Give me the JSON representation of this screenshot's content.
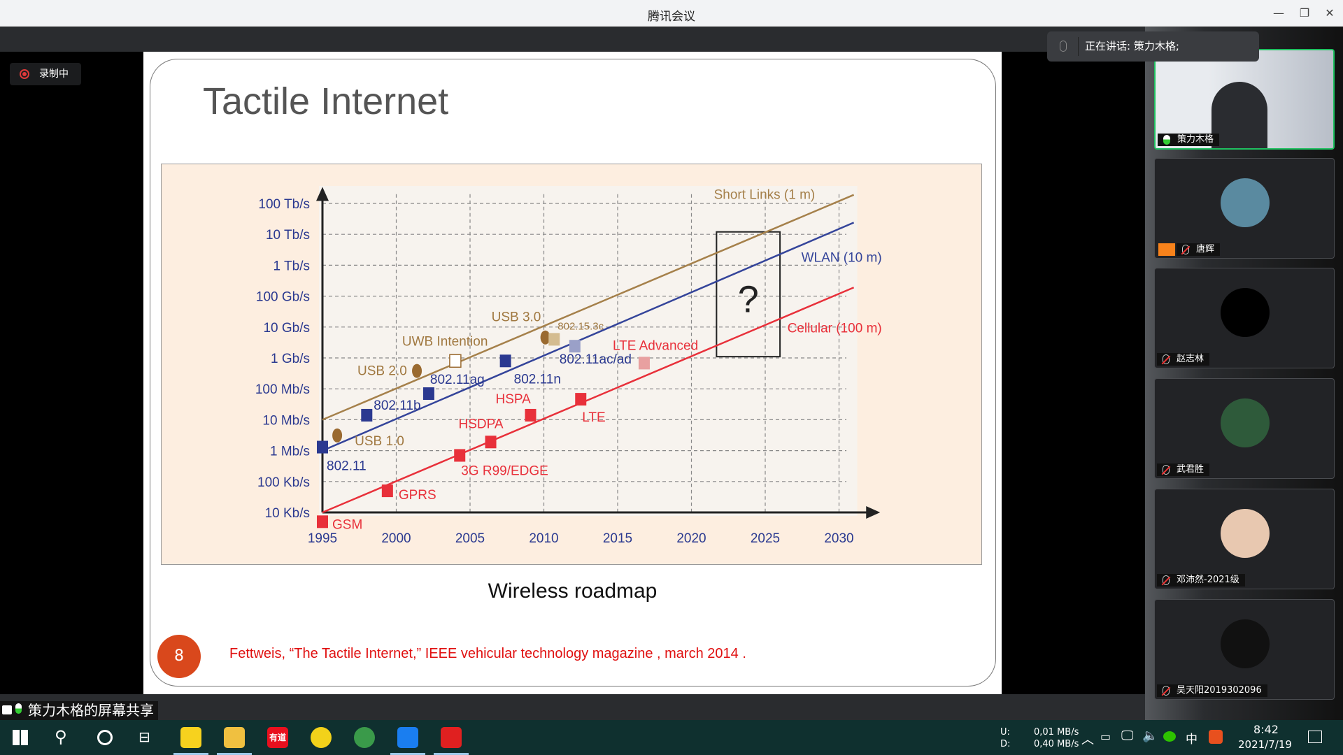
{
  "window": {
    "title": "腾讯会议",
    "controls": [
      "minimize",
      "restore",
      "close"
    ]
  },
  "recording": {
    "label": "录制中"
  },
  "speaking": {
    "label": "正在讲话: 策力木格;"
  },
  "share_label": "策力木格的屏幕共享",
  "slide": {
    "title": "Tactile Internet",
    "caption": "Wireless roadmap",
    "page_number": "8",
    "citation": "Fettweis, “The Tactile Internet,” IEEE vehicular technology magazine , march 2014 ."
  },
  "chart_data": {
    "type": "line",
    "title": "",
    "xlabel": "",
    "ylabel": "",
    "x_ticks": [
      "1995",
      "2000",
      "2005",
      "2010",
      "2015",
      "2020",
      "2025",
      "2030"
    ],
    "y_ticks": [
      "10 Kb/s",
      "100 Kb/s",
      "1 Mb/s",
      "10 Mb/s",
      "100 Mb/s",
      "1 Gb/s",
      "10 Gb/s",
      "100 Gb/s",
      "1 Tb/s",
      "10 Tb/s",
      "100 Tb/s"
    ],
    "y_scale": "log",
    "ylim_bps": [
      10000,
      100000000000000
    ],
    "xlim": [
      1995,
      2031
    ],
    "grid": true,
    "series": [
      {
        "name": "Short Links (1 m)",
        "color": "#a5804a",
        "x": [
          1995,
          2031
        ],
        "y": [
          10000000,
          190000000000000
        ]
      },
      {
        "name": "WLAN (10 m)",
        "color": "#34449a",
        "x": [
          1995,
          2031
        ],
        "y": [
          1000000,
          24000000000000
        ]
      },
      {
        "name": "Cellular (100 m)",
        "color": "#e8303a",
        "x": [
          1995,
          2031
        ],
        "y": [
          10000,
          190000000000
        ]
      }
    ],
    "points": [
      {
        "label": "802.11",
        "x": 1995,
        "y": 1300000,
        "color": "#2b3990",
        "shape": "square"
      },
      {
        "label": "GSM",
        "x": 1995,
        "y": 5000,
        "color": "#e8303a",
        "shape": "square"
      },
      {
        "label": "USB 1.0",
        "x": 1996,
        "y": 3100000,
        "color": "#9a6a30",
        "shape": "ellipse"
      },
      {
        "label": "802.11b",
        "x": 1998,
        "y": 14000000,
        "color": "#2b3990",
        "shape": "square"
      },
      {
        "label": "GPRS",
        "x": 1999.4,
        "y": 50000,
        "color": "#e8303a",
        "shape": "square"
      },
      {
        "label": "802.11ag",
        "x": 2002.2,
        "y": 70000000,
        "color": "#2b3990",
        "shape": "square"
      },
      {
        "label": "USB 2.0",
        "x": 2001.4,
        "y": 380000000,
        "color": "#9a6a30",
        "shape": "ellipse"
      },
      {
        "label": "UWB Intention",
        "x": 2004,
        "y": 800000000,
        "color": "#ffffff",
        "shape": "open-square"
      },
      {
        "label": "802.11n",
        "x": 2007.4,
        "y": 800000000,
        "color": "#2b3990",
        "shape": "square"
      },
      {
        "label": "USB 3.0",
        "x": 2010.1,
        "y": 4600000000,
        "color": "#9a6a30",
        "shape": "ellipse"
      },
      {
        "label": "802.15.3c",
        "x": 2010.7,
        "y": 4000000000,
        "color": "#d4bc90",
        "shape": "square"
      },
      {
        "label": "802.11ac/ad",
        "x": 2012.1,
        "y": 2400000000,
        "color": "#9aa0c8",
        "shape": "square"
      },
      {
        "label": "LTE Advanced",
        "x": 2016.8,
        "y": 680000000,
        "color": "#e8a0a0",
        "shape": "square"
      },
      {
        "label": "3G R99/EDGE",
        "x": 2004.3,
        "y": 700000,
        "color": "#e8303a",
        "shape": "square"
      },
      {
        "label": "HSDPA",
        "x": 2006.4,
        "y": 1900000,
        "color": "#e8303a",
        "shape": "square"
      },
      {
        "label": "HSPA",
        "x": 2009.1,
        "y": 14000000,
        "color": "#e8303a",
        "shape": "square"
      },
      {
        "label": "LTE",
        "x": 2012.5,
        "y": 46000000,
        "color": "#e8303a",
        "shape": "square"
      }
    ],
    "annotation": {
      "text": "?",
      "x_range": [
        2021.7,
        2026
      ],
      "y_range": [
        1100000000,
        12000000000000
      ]
    }
  },
  "participants": [
    {
      "name": "策力木格",
      "mic": "on",
      "video": true
    },
    {
      "name": "唐辉",
      "mic": "muted",
      "host": true,
      "avatar": "#5a8aa0"
    },
    {
      "name": "赵志林",
      "mic": "muted",
      "avatar": "#000000"
    },
    {
      "name": "武君胜",
      "mic": "muted",
      "avatar": "#2e5a3a"
    },
    {
      "name": "邓沛然-2021级",
      "mic": "muted",
      "avatar": "#e8c8b0"
    },
    {
      "name": "吴天阳2019302096",
      "mic": "muted",
      "avatar": "#111111"
    }
  ],
  "taskbar": {
    "apps": [
      {
        "name": "sticky-notes",
        "color": "#f7d21e"
      },
      {
        "name": "file-explorer",
        "color": "#f0c040"
      },
      {
        "name": "youdao",
        "color": "#e8101e",
        "label": "有道"
      },
      {
        "name": "qq-music",
        "color": "#f2d21a"
      },
      {
        "name": "chrome",
        "color": "#3a9a4a"
      },
      {
        "name": "tencent-meeting",
        "color": "#1a7ef0"
      },
      {
        "name": "wps",
        "color": "#e02020"
      }
    ],
    "net_up_label": "U:",
    "net_up": "0,01 MB/s",
    "net_down_label": "D:",
    "net_down": "0,40 MB/s",
    "ime": "中",
    "time": "8:42",
    "date": "2021/7/19"
  }
}
